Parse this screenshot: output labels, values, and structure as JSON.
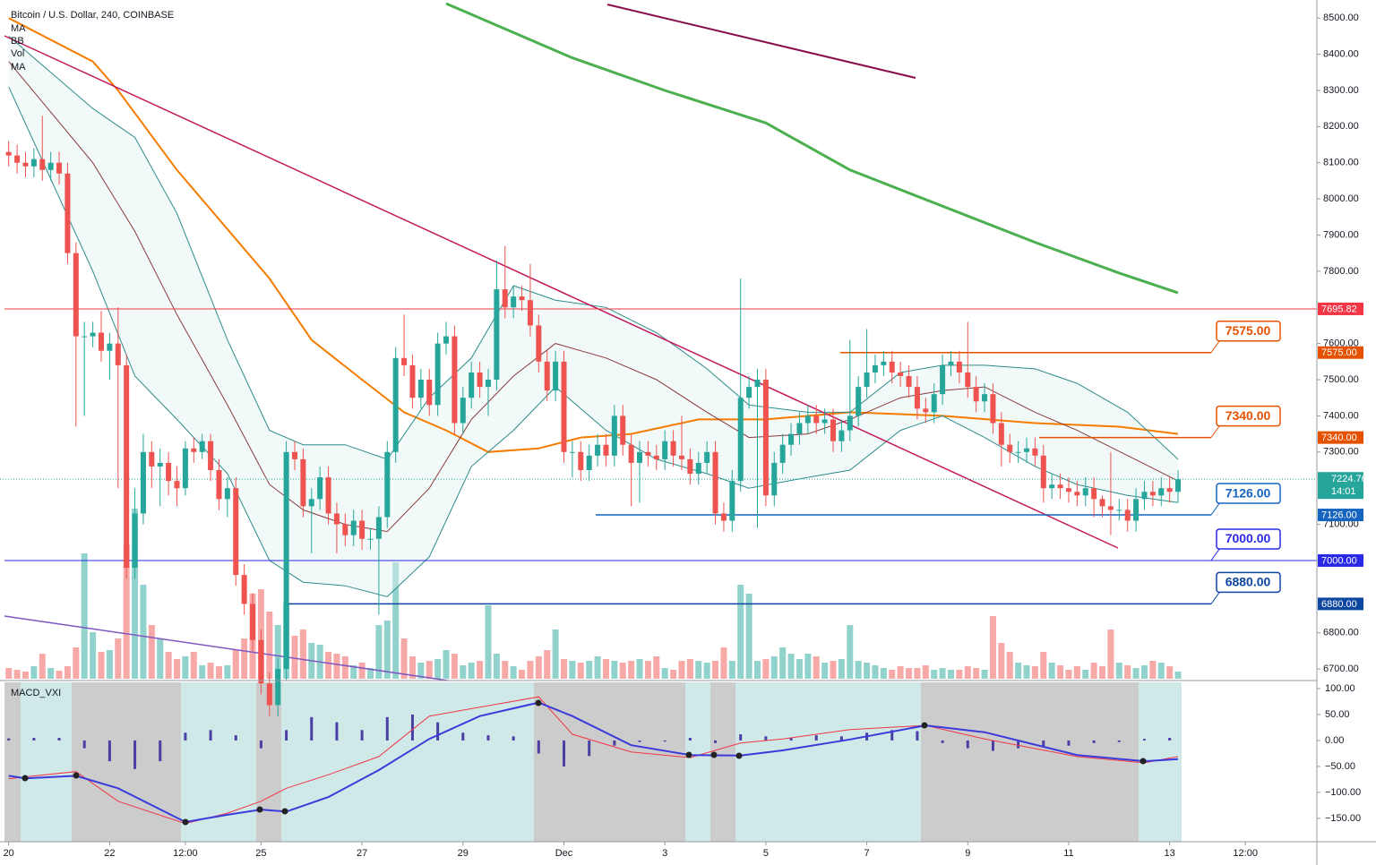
{
  "chart_data": {
    "type": "candlestick",
    "title": "Bitcoin / U.S. Dollar, 240, COINBASE",
    "indicators": [
      "MA",
      "BB",
      "Vol",
      "MA"
    ],
    "xlim": [
      -0.5,
      155.5
    ],
    "xticks": [
      {
        "value": 0,
        "label": "20"
      },
      {
        "value": 12,
        "label": "22"
      },
      {
        "value": 21,
        "label": "12:00"
      },
      {
        "value": 30,
        "label": "25"
      },
      {
        "value": 42,
        "label": "27"
      },
      {
        "value": 54,
        "label": "29"
      },
      {
        "value": 66,
        "label": "Dec"
      },
      {
        "value": 78,
        "label": "3"
      },
      {
        "value": 90,
        "label": "5"
      },
      {
        "value": 102,
        "label": "7"
      },
      {
        "value": 114,
        "label": "9"
      },
      {
        "value": 126,
        "label": "11"
      },
      {
        "value": 138,
        "label": "13"
      },
      {
        "value": 147,
        "label": "12:00"
      }
    ],
    "ylim": [
      6673,
      8550
    ],
    "yticks": [
      {
        "value": 8500,
        "label": "8500.00"
      },
      {
        "value": 8400,
        "label": "8400.00"
      },
      {
        "value": 8300,
        "label": "8300.00"
      },
      {
        "value": 8200,
        "label": "8200.00"
      },
      {
        "value": 8100,
        "label": "8100.00"
      },
      {
        "value": 8000,
        "label": "8000.00"
      },
      {
        "value": 7900,
        "label": "7900.00"
      },
      {
        "value": 7800,
        "label": "7800.00"
      },
      {
        "value": 7600,
        "label": "7600.00"
      },
      {
        "value": 7500,
        "label": "7500.00"
      },
      {
        "value": 7400,
        "label": "7400.00"
      },
      {
        "value": 7300,
        "label": "7300.00"
      },
      {
        "value": 7100,
        "label": "7100.00"
      },
      {
        "value": 6800,
        "label": "6800.00"
      },
      {
        "value": 6700,
        "label": "6700.00"
      }
    ],
    "grid": true,
    "up_color": "#26a69a",
    "down_color": "#ef5350",
    "open": [
      8130,
      8120,
      8100,
      8090,
      8110,
      8080,
      8100,
      8070,
      7850,
      7620,
      7620,
      7630,
      7580,
      7600,
      7540,
      6980,
      7130,
      7300,
      7260,
      7270,
      7220,
      7200,
      7310,
      7300,
      7330,
      7250,
      7170,
      7200,
      6960,
      6880,
      6780,
      6660,
      6600,
      6700,
      7300,
      7280,
      7150,
      7170,
      7230,
      7130,
      7100,
      7070,
      7110,
      7060,
      7060,
      7120,
      7300,
      7560,
      7540,
      7450,
      7500,
      7430,
      7600,
      7620,
      7380,
      7450,
      7520,
      7480,
      7500,
      7750,
      7700,
      7730,
      7720,
      7650,
      7550,
      7470,
      7550,
      7300,
      7300,
      7250,
      7290,
      7320,
      7290,
      7400,
      7320,
      7270,
      7300,
      7290,
      7280,
      7330,
      7290,
      7280,
      7240,
      7270,
      7300,
      7130,
      7110,
      7220,
      7450,
      7480,
      7500,
      7180,
      7270,
      7320,
      7350,
      7380,
      7400,
      7380,
      7390,
      7330,
      7360,
      7400,
      7480,
      7520,
      7540,
      7550,
      7520,
      7510,
      7480,
      7420,
      7410,
      7460,
      7540,
      7550,
      7520,
      7480,
      7440,
      7460,
      7380,
      7320,
      7300,
      7300,
      7310,
      7290,
      7200,
      7210,
      7200,
      7190,
      7180,
      7200,
      7170,
      7150,
      7140,
      7140,
      7110,
      7170,
      7190,
      7180,
      7200,
      7190
    ],
    "high": [
      8160,
      8150,
      8130,
      8140,
      8230,
      8130,
      8130,
      8100,
      7880,
      7660,
      7660,
      7690,
      7630,
      7700,
      7570,
      7200,
      7350,
      7330,
      7310,
      7300,
      7260,
      7330,
      7340,
      7350,
      7350,
      7280,
      7230,
      7230,
      6990,
      6910,
      6810,
      6690,
      6730,
      7330,
      7330,
      7310,
      7200,
      7260,
      7260,
      7160,
      7130,
      7140,
      7140,
      7090,
      7150,
      7330,
      7590,
      7680,
      7570,
      7530,
      7530,
      7630,
      7660,
      7650,
      7480,
      7550,
      7550,
      7530,
      7830,
      7870,
      7760,
      7760,
      7820,
      7680,
      7580,
      7580,
      7580,
      7330,
      7330,
      7320,
      7350,
      7350,
      7430,
      7430,
      7350,
      7330,
      7330,
      7320,
      7360,
      7360,
      7400,
      7310,
      7300,
      7330,
      7330,
      7160,
      7250,
      7780,
      7510,
      7530,
      7530,
      7300,
      7350,
      7380,
      7410,
      7430,
      7430,
      7420,
      7420,
      7390,
      7610,
      7510,
      7640,
      7570,
      7580,
      7580,
      7550,
      7540,
      7510,
      7450,
      7490,
      7570,
      7580,
      7580,
      7660,
      7510,
      7490,
      7490,
      7410,
      7350,
      7330,
      7340,
      7340,
      7320,
      7240,
      7240,
      7230,
      7220,
      7230,
      7230,
      7180,
      7300,
      7170,
      7170,
      7200,
      7220,
      7220,
      7230,
      7230,
      7250
    ],
    "low": [
      8090,
      8070,
      8060,
      8060,
      8050,
      8050,
      8040,
      7820,
      7370,
      7400,
      7590,
      7550,
      7500,
      7200,
      6950,
      6950,
      7100,
      7200,
      7150,
      7180,
      7150,
      7180,
      7270,
      7280,
      7220,
      7140,
      7120,
      6930,
      6850,
      6750,
      6630,
      6570,
      6570,
      6670,
      7250,
      7120,
      7020,
      7140,
      7100,
      7020,
      7040,
      7040,
      7030,
      7030,
      6850,
      7090,
      7270,
      7510,
      7420,
      7420,
      7400,
      7400,
      7570,
      7350,
      7350,
      7420,
      7450,
      7400,
      7470,
      7670,
      7670,
      7690,
      7620,
      7520,
      7440,
      7440,
      7270,
      7230,
      7220,
      7220,
      7260,
      7260,
      7260,
      7290,
      7150,
      7160,
      7260,
      7250,
      7250,
      7260,
      7250,
      7210,
      7210,
      7240,
      7100,
      7080,
      7080,
      7190,
      7420,
      7090,
      7150,
      7150,
      7240,
      7290,
      7320,
      7350,
      7350,
      7350,
      7300,
      7300,
      7330,
      7370,
      7450,
      7490,
      7510,
      7490,
      7480,
      7450,
      7390,
      7380,
      7380,
      7430,
      7510,
      7490,
      7450,
      7410,
      7410,
      7350,
      7260,
      7270,
      7270,
      7270,
      7260,
      7160,
      7170,
      7170,
      7160,
      7150,
      7150,
      7120,
      7120,
      7070,
      7110,
      7080,
      7080,
      7140,
      7150,
      7150,
      7160,
      7160
    ],
    "close": [
      8120,
      8100,
      8090,
      8110,
      8080,
      8100,
      8070,
      7850,
      7620,
      7620,
      7630,
      7580,
      7600,
      7540,
      6980,
      7130,
      7300,
      7260,
      7270,
      7220,
      7200,
      7310,
      7300,
      7330,
      7250,
      7170,
      7200,
      6960,
      6880,
      6780,
      6660,
      6600,
      6700,
      7300,
      7280,
      7150,
      7170,
      7230,
      7130,
      7100,
      7070,
      7110,
      7060,
      7060,
      7120,
      7300,
      7560,
      7540,
      7450,
      7500,
      7430,
      7600,
      7620,
      7380,
      7450,
      7520,
      7480,
      7500,
      7750,
      7700,
      7730,
      7720,
      7650,
      7550,
      7470,
      7550,
      7300,
      7300,
      7250,
      7290,
      7320,
      7290,
      7400,
      7320,
      7270,
      7300,
      7290,
      7280,
      7330,
      7290,
      7280,
      7240,
      7270,
      7300,
      7130,
      7110,
      7220,
      7450,
      7480,
      7500,
      7180,
      7270,
      7320,
      7350,
      7380,
      7400,
      7380,
      7390,
      7330,
      7360,
      7400,
      7480,
      7520,
      7540,
      7550,
      7520,
      7510,
      7480,
      7420,
      7410,
      7460,
      7540,
      7550,
      7520,
      7480,
      7440,
      7460,
      7380,
      7320,
      7300,
      7300,
      7310,
      7290,
      7200,
      7210,
      7200,
      7190,
      7180,
      7200,
      7170,
      7150,
      7140,
      7140,
      7110,
      7170,
      7190,
      7180,
      7200,
      7190,
      7224.76
    ],
    "volume": [
      12,
      10,
      8,
      14,
      28,
      12,
      9,
      14,
      35,
      140,
      52,
      30,
      32,
      45,
      150,
      190,
      105,
      60,
      45,
      30,
      22,
      25,
      30,
      15,
      18,
      14,
      15,
      32,
      45,
      95,
      100,
      75,
      60,
      85,
      48,
      55,
      40,
      38,
      30,
      28,
      25,
      15,
      18,
      12,
      60,
      65,
      130,
      45,
      25,
      18,
      20,
      22,
      32,
      28,
      15,
      18,
      20,
      82,
      28,
      20,
      14,
      10,
      20,
      25,
      32,
      55,
      22,
      20,
      18,
      20,
      25,
      22,
      20,
      18,
      20,
      22,
      20,
      25,
      12,
      10,
      20,
      22,
      20,
      18,
      20,
      35,
      20,
      105,
      95,
      20,
      22,
      25,
      35,
      28,
      22,
      28,
      25,
      18,
      20,
      22,
      60,
      20,
      18,
      15,
      12,
      10,
      14,
      12,
      12,
      15,
      10,
      12,
      10,
      10,
      14,
      12,
      10,
      70,
      40,
      30,
      18,
      15,
      14,
      30,
      18,
      15,
      10,
      14,
      10,
      18,
      14,
      55,
      18,
      15,
      12,
      15,
      20,
      18,
      14,
      8
    ],
    "overlays": [
      {
        "color": "#f57c00",
        "width": 2,
        "x": [
          0,
          10,
          13,
          20,
          31,
          36,
          42,
          47,
          52,
          57,
          63,
          68,
          74,
          82,
          90,
          100,
          111,
          122,
          132,
          139
        ],
        "values": [
          8500,
          8380,
          8300,
          8080,
          7780,
          7610,
          7500,
          7410,
          7360,
          7300,
          7310,
          7340,
          7350,
          7390,
          7390,
          7410,
          7400,
          7380,
          7370,
          7350
        ]
      },
      {
        "color": "#4caf50",
        "width": 3,
        "x": [
          52,
          67,
          78,
          90,
          100,
          111,
          122,
          132,
          139
        ],
        "values": [
          8540,
          8390,
          8300,
          8210,
          8080,
          7980,
          7880,
          7795,
          7740
        ]
      },
      {
        "color": "#2e8b8b",
        "width": 1,
        "x": [
          0,
          10,
          15,
          20,
          26,
          31,
          35,
          40,
          45,
          50,
          55,
          60,
          65,
          71,
          77,
          83,
          88,
          95,
          100,
          106,
          111,
          116,
          122,
          127,
          133,
          139
        ],
        "values": [
          8450,
          8250,
          8170,
          7960,
          7610,
          7360,
          7320,
          7320,
          7280,
          7450,
          7560,
          7760,
          7720,
          7700,
          7630,
          7530,
          7430,
          7410,
          7410,
          7520,
          7540,
          7540,
          7530,
          7490,
          7410,
          7280
        ]
      },
      {
        "color": "#2e8b8b",
        "width": 1,
        "x": [
          0,
          10,
          15,
          20,
          26,
          31,
          35,
          40,
          45,
          50,
          55,
          60,
          65,
          71,
          77,
          83,
          88,
          95,
          100,
          106,
          111,
          116,
          122,
          127,
          133,
          139
        ],
        "values": [
          8310,
          7800,
          7510,
          7390,
          7240,
          7000,
          6940,
          6930,
          6900,
          7010,
          7260,
          7360,
          7480,
          7360,
          7280,
          7240,
          7200,
          7230,
          7250,
          7360,
          7400,
          7340,
          7260,
          7210,
          7180,
          7160
        ]
      },
      {
        "color": "#8b3a3a",
        "width": 1,
        "x": [
          0,
          10,
          15,
          20,
          26,
          31,
          35,
          40,
          45,
          50,
          55,
          60,
          65,
          71,
          77,
          83,
          88,
          95,
          100,
          106,
          111,
          116,
          122,
          127,
          133,
          139
        ],
        "values": [
          8380,
          8100,
          7910,
          7680,
          7430,
          7210,
          7140,
          7100,
          7080,
          7200,
          7390,
          7510,
          7600,
          7560,
          7500,
          7410,
          7340,
          7350,
          7390,
          7450,
          7470,
          7480,
          7410,
          7360,
          7290,
          7220
        ]
      }
    ],
    "levels": [
      {
        "value": 7695.82,
        "label": "7695.82",
        "color": "#f23645"
      },
      {
        "value": 7575,
        "label": "7575.00",
        "color": "#e65100"
      },
      {
        "value": 7340,
        "label": "7340.00",
        "color": "#e65100"
      },
      {
        "value": 7126,
        "label": "7126.00",
        "color": "#1565c0"
      },
      {
        "value": 7000,
        "label": "7000.00",
        "color": "#2929e6"
      },
      {
        "value": 6880,
        "label": "6880.00",
        "color": "#0d47a1"
      }
    ],
    "last_price_color": "#26a69a",
    "countdown": "14:01",
    "macd": {
      "title": "MACD_VXI",
      "ylim": [
        -195,
        112
      ],
      "yticks": [
        {
          "value": 100,
          "label": "100.00"
        },
        {
          "value": 50,
          "label": "50.00"
        },
        {
          "value": 0,
          "label": "0.00"
        },
        {
          "value": -50,
          "label": "−50.00"
        },
        {
          "value": -100,
          "label": "−100.00"
        },
        {
          "value": -150,
          "label": "−150.00"
        }
      ],
      "x": [
        0,
        2,
        8,
        13,
        21,
        26,
        30,
        33,
        38,
        44,
        50,
        56,
        63,
        67,
        74,
        81,
        87,
        92,
        100,
        109,
        116,
        127,
        135,
        139
      ],
      "macd": {
        "color": "#3b3bdc",
        "values": [
          -68,
          -73,
          -68,
          -92,
          -157,
          -143,
          -133,
          -137,
          -109,
          -57,
          3,
          47,
          73,
          47,
          -9,
          -28,
          -29,
          -19,
          2,
          29,
          16,
          -28,
          -40,
          -36
        ]
      },
      "signal": {
        "color": "#f23645",
        "values": [
          -74,
          -70,
          -60,
          -117,
          -160,
          -140,
          -117,
          -92,
          -66,
          -31,
          47,
          64,
          84,
          12,
          -22,
          -33,
          -5,
          3,
          21,
          29,
          3,
          -31,
          -43,
          -31
        ]
      },
      "histogram": {
        "color": "#4a3fa5",
        "x": [
          0,
          3,
          6,
          9,
          12,
          15,
          18,
          21,
          24,
          27,
          30,
          33,
          36,
          39,
          42,
          45,
          48,
          51,
          54,
          57,
          60,
          63,
          66,
          69,
          72,
          75,
          78,
          81,
          84,
          87,
          90,
          93,
          96,
          99,
          102,
          105,
          108,
          111,
          114,
          117,
          120,
          123,
          126,
          129,
          132,
          135,
          138
        ],
        "values": [
          4,
          5,
          5,
          -15,
          -40,
          -55,
          -40,
          15,
          20,
          10,
          -15,
          20,
          45,
          35,
          20,
          45,
          50,
          35,
          15,
          10,
          8,
          -25,
          -50,
          -30,
          -10,
          -3,
          -2,
          5,
          -5,
          12,
          8,
          5,
          10,
          8,
          15,
          20,
          18,
          -5,
          -15,
          -20,
          -15,
          -12,
          -10,
          -5,
          -3,
          3,
          5
        ]
      }
    }
  }
}
